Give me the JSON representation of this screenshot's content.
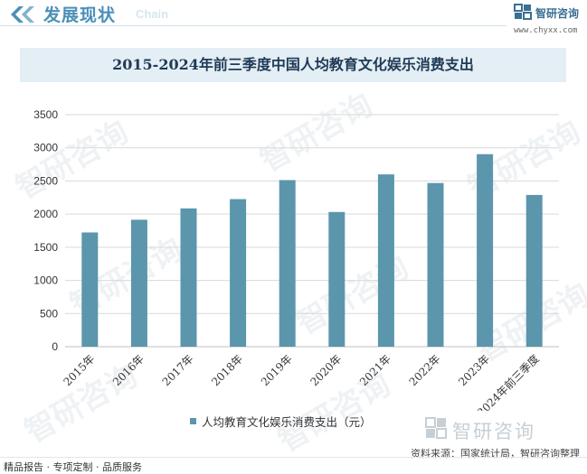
{
  "header": {
    "title": "发展现状",
    "subtitle": "Chain",
    "brand_name": "智研咨询",
    "brand_url": "www.chyxx.com"
  },
  "chart_data": {
    "type": "bar",
    "title": "2015-2024年前三季度中国人均教育文化娱乐消费支出",
    "categories": [
      "2015年",
      "2016年",
      "2017年",
      "2018年",
      "2019年",
      "2020年",
      "2021年",
      "2022年",
      "2023年",
      "2024年前三季度"
    ],
    "series": [
      {
        "name": "人均教育文化娱乐消费支出（元）",
        "values": [
          1723,
          1915,
          2086,
          2226,
          2513,
          2032,
          2599,
          2469,
          2904,
          2289
        ]
      }
    ],
    "ylim": [
      0,
      3500
    ],
    "yticks": [
      0,
      500,
      1000,
      1500,
      2000,
      2500,
      3000,
      3500
    ],
    "grid": true,
    "legend_position": "bottom",
    "colors": {
      "bar": "#5b96ad",
      "grid": "#d9d9d9",
      "axis": "#bfbfbf"
    }
  },
  "legend": {
    "label": "人均教育文化娱乐消费支出（元）"
  },
  "watermark": {
    "text": "智研咨询"
  },
  "footer": {
    "source": "资料来源：国家统计局，智研咨询整理",
    "left_text": "精品报告 · 专项定制 · 品质服务",
    "brand_name": "智研咨询"
  }
}
